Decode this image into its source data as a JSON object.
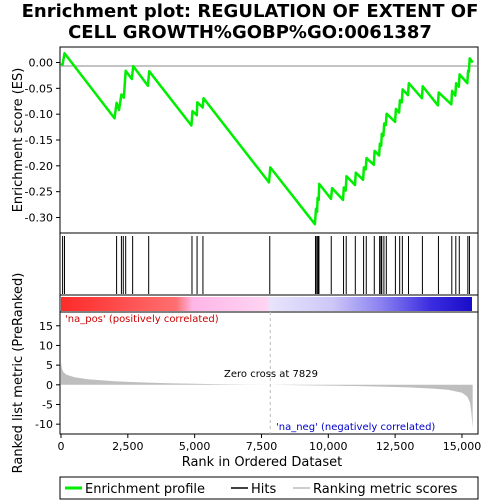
{
  "title_line1": "Enrichment plot: REGULATION OF EXTENT OF",
  "title_line2": "CELL GROWTH%GOBP%GO:0061387",
  "colors": {
    "es_line": "#00ee00",
    "hit": "#000000",
    "metric": "#bebebe",
    "pos_label": "#cc0000",
    "neg_label": "#0000cc",
    "zero_line": "#bbbbbb"
  },
  "chart_data": [
    {
      "type": "line",
      "name": "enrichment-profile",
      "ylabel": "Enrichment score (ES)",
      "ylim": [
        -0.33,
        0.03
      ],
      "xlim": [
        0,
        15600
      ],
      "yticks": [
        0.0,
        -0.05,
        -0.1,
        -0.15,
        -0.2,
        -0.25,
        -0.3
      ],
      "ytick_labels": [
        "0.00",
        "-0.05",
        "-0.10",
        "-0.15",
        "-0.20",
        "-0.25",
        "-0.30"
      ],
      "grid": false,
      "points": [
        [
          0,
          -0.002
        ],
        [
          60,
          -0.004
        ],
        [
          130,
          0.018
        ],
        [
          2000,
          -0.108
        ],
        [
          2080,
          -0.078
        ],
        [
          2170,
          -0.092
        ],
        [
          2260,
          -0.062
        ],
        [
          2350,
          -0.068
        ],
        [
          2420,
          -0.016
        ],
        [
          2650,
          -0.032
        ],
        [
          2700,
          -0.007
        ],
        [
          3250,
          -0.045
        ],
        [
          3300,
          -0.017
        ],
        [
          4880,
          -0.122
        ],
        [
          4920,
          -0.094
        ],
        [
          5080,
          -0.102
        ],
        [
          5100,
          -0.077
        ],
        [
          5300,
          -0.087
        ],
        [
          5330,
          -0.069
        ],
        [
          7780,
          -0.232
        ],
        [
          7830,
          -0.203
        ],
        [
          9500,
          -0.313
        ],
        [
          9540,
          -0.283
        ],
        [
          9580,
          -0.289
        ],
        [
          9600,
          -0.262
        ],
        [
          9640,
          -0.266
        ],
        [
          9660,
          -0.235
        ],
        [
          10100,
          -0.264
        ],
        [
          10140,
          -0.243
        ],
        [
          10550,
          -0.266
        ],
        [
          10580,
          -0.242
        ],
        [
          10650,
          -0.248
        ],
        [
          10680,
          -0.22
        ],
        [
          11000,
          -0.237
        ],
        [
          11030,
          -0.213
        ],
        [
          11300,
          -0.227
        ],
        [
          11330,
          -0.203
        ],
        [
          11400,
          -0.207
        ],
        [
          11430,
          -0.185
        ],
        [
          11700,
          -0.198
        ],
        [
          11730,
          -0.171
        ],
        [
          11900,
          -0.18
        ],
        [
          11930,
          -0.157
        ],
        [
          11980,
          -0.161
        ],
        [
          12000,
          -0.138
        ],
        [
          12060,
          -0.142
        ],
        [
          12090,
          -0.118
        ],
        [
          12150,
          -0.121
        ],
        [
          12180,
          -0.099
        ],
        [
          12500,
          -0.115
        ],
        [
          12530,
          -0.09
        ],
        [
          12650,
          -0.097
        ],
        [
          12680,
          -0.073
        ],
        [
          12750,
          -0.077
        ],
        [
          12780,
          -0.052
        ],
        [
          12980,
          -0.063
        ],
        [
          13010,
          -0.04
        ],
        [
          13500,
          -0.069
        ],
        [
          13530,
          -0.046
        ],
        [
          14100,
          -0.083
        ],
        [
          14130,
          -0.058
        ],
        [
          14600,
          -0.081
        ],
        [
          14630,
          -0.055
        ],
        [
          14750,
          -0.064
        ],
        [
          14780,
          -0.04
        ],
        [
          14880,
          -0.047
        ],
        [
          14910,
          -0.023
        ],
        [
          15200,
          -0.04
        ],
        [
          15230,
          -0.016
        ],
        [
          15260,
          -0.018
        ],
        [
          15290,
          0.008
        ],
        [
          15400,
          0.0
        ]
      ]
    },
    {
      "type": "bar",
      "name": "hits",
      "x": [
        60,
        130,
        2080,
        2260,
        2330,
        2420,
        2680,
        3280,
        4900,
        5090,
        5310,
        7810,
        9520,
        9570,
        9590,
        9630,
        9650,
        10110,
        10570,
        10670,
        11010,
        11320,
        11420,
        11720,
        11920,
        11970,
        12000,
        12080,
        12170,
        12510,
        12670,
        12770,
        13000,
        13520,
        14120,
        14620,
        14770,
        14900,
        15220,
        15280
      ]
    },
    {
      "type": "area",
      "name": "ranked-list-metric",
      "xlabel": "Rank in Ordered Dataset",
      "ylabel": "Ranked list metric (PreRanked)",
      "ylim": [
        -12.5,
        18.5
      ],
      "yticks": [
        15,
        10,
        5,
        0,
        -5,
        -10
      ],
      "ytick_labels": [
        "15",
        "10",
        "5",
        "0",
        "-5",
        "-10"
      ],
      "xticks": [
        0,
        2500,
        5000,
        7500,
        10000,
        12500,
        15000
      ],
      "xtick_labels": [
        "0",
        "2,500",
        "5,000",
        "7,500",
        "10,000",
        "12,500",
        "15,000"
      ],
      "zero_cross": 7829,
      "points": [
        [
          0,
          5.8
        ],
        [
          30,
          4.2
        ],
        [
          80,
          3.3
        ],
        [
          200,
          2.6
        ],
        [
          500,
          1.9
        ],
        [
          1000,
          1.4
        ],
        [
          2000,
          0.9
        ],
        [
          3000,
          0.6
        ],
        [
          4000,
          0.4
        ],
        [
          5000,
          0.25
        ],
        [
          6000,
          0.15
        ],
        [
          7000,
          0.06
        ],
        [
          7829,
          0.0
        ],
        [
          9000,
          -0.1
        ],
        [
          10000,
          -0.2
        ],
        [
          11000,
          -0.3
        ],
        [
          12000,
          -0.45
        ],
        [
          13000,
          -0.65
        ],
        [
          14000,
          -1.0
        ],
        [
          14500,
          -1.3
        ],
        [
          15000,
          -2.0
        ],
        [
          15200,
          -3.0
        ],
        [
          15300,
          -4.5
        ],
        [
          15350,
          -7.0
        ],
        [
          15400,
          -11.0
        ]
      ]
    }
  ],
  "labels": {
    "pos": "'na_pos' (positively correlated)",
    "neg": "'na_neg' (negatively correlated)",
    "zero_cross": "Zero cross at 7829"
  },
  "legend": {
    "items": [
      "Enrichment profile",
      "Hits",
      "Ranking metric scores"
    ]
  }
}
